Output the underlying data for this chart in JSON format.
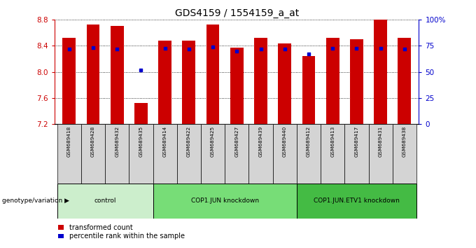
{
  "title": "GDS4159 / 1554159_a_at",
  "samples": [
    "GSM689418",
    "GSM689428",
    "GSM689432",
    "GSM689435",
    "GSM689414",
    "GSM689422",
    "GSM689425",
    "GSM689427",
    "GSM689439",
    "GSM689440",
    "GSM689412",
    "GSM689413",
    "GSM689417",
    "GSM689431",
    "GSM689438"
  ],
  "bar_values": [
    8.52,
    8.73,
    8.71,
    7.52,
    8.48,
    8.48,
    8.73,
    8.37,
    8.52,
    8.44,
    8.24,
    8.52,
    8.5,
    8.8,
    8.52
  ],
  "dot_values": [
    8.35,
    8.37,
    8.35,
    8.03,
    8.36,
    8.35,
    8.38,
    8.32,
    8.35,
    8.35,
    8.28,
    8.36,
    8.36,
    8.36,
    8.35
  ],
  "ymin": 7.2,
  "ymax": 8.8,
  "yticks": [
    7.2,
    7.6,
    8.0,
    8.4,
    8.8
  ],
  "y2ticks": [
    0,
    25,
    50,
    75,
    100
  ],
  "y2labels": [
    "0",
    "25",
    "50",
    "75",
    "100%"
  ],
  "bar_color": "#CC0000",
  "dot_color": "#0000CC",
  "bar_width": 0.55,
  "groups": [
    {
      "label": "control",
      "start": 0,
      "end": 3
    },
    {
      "label": "COP1.JUN knockdown",
      "start": 4,
      "end": 9
    },
    {
      "label": "COP1.JUN.ETV1 knockdown",
      "start": 10,
      "end": 14
    }
  ],
  "group_colors": [
    "#cceecc",
    "#77dd77",
    "#44bb44"
  ],
  "legend_items": [
    "transformed count",
    "percentile rank within the sample"
  ],
  "genotype_label": "genotype/variation",
  "title_fontsize": 10,
  "left_axis_color": "#CC0000",
  "right_axis_color": "#0000CC"
}
